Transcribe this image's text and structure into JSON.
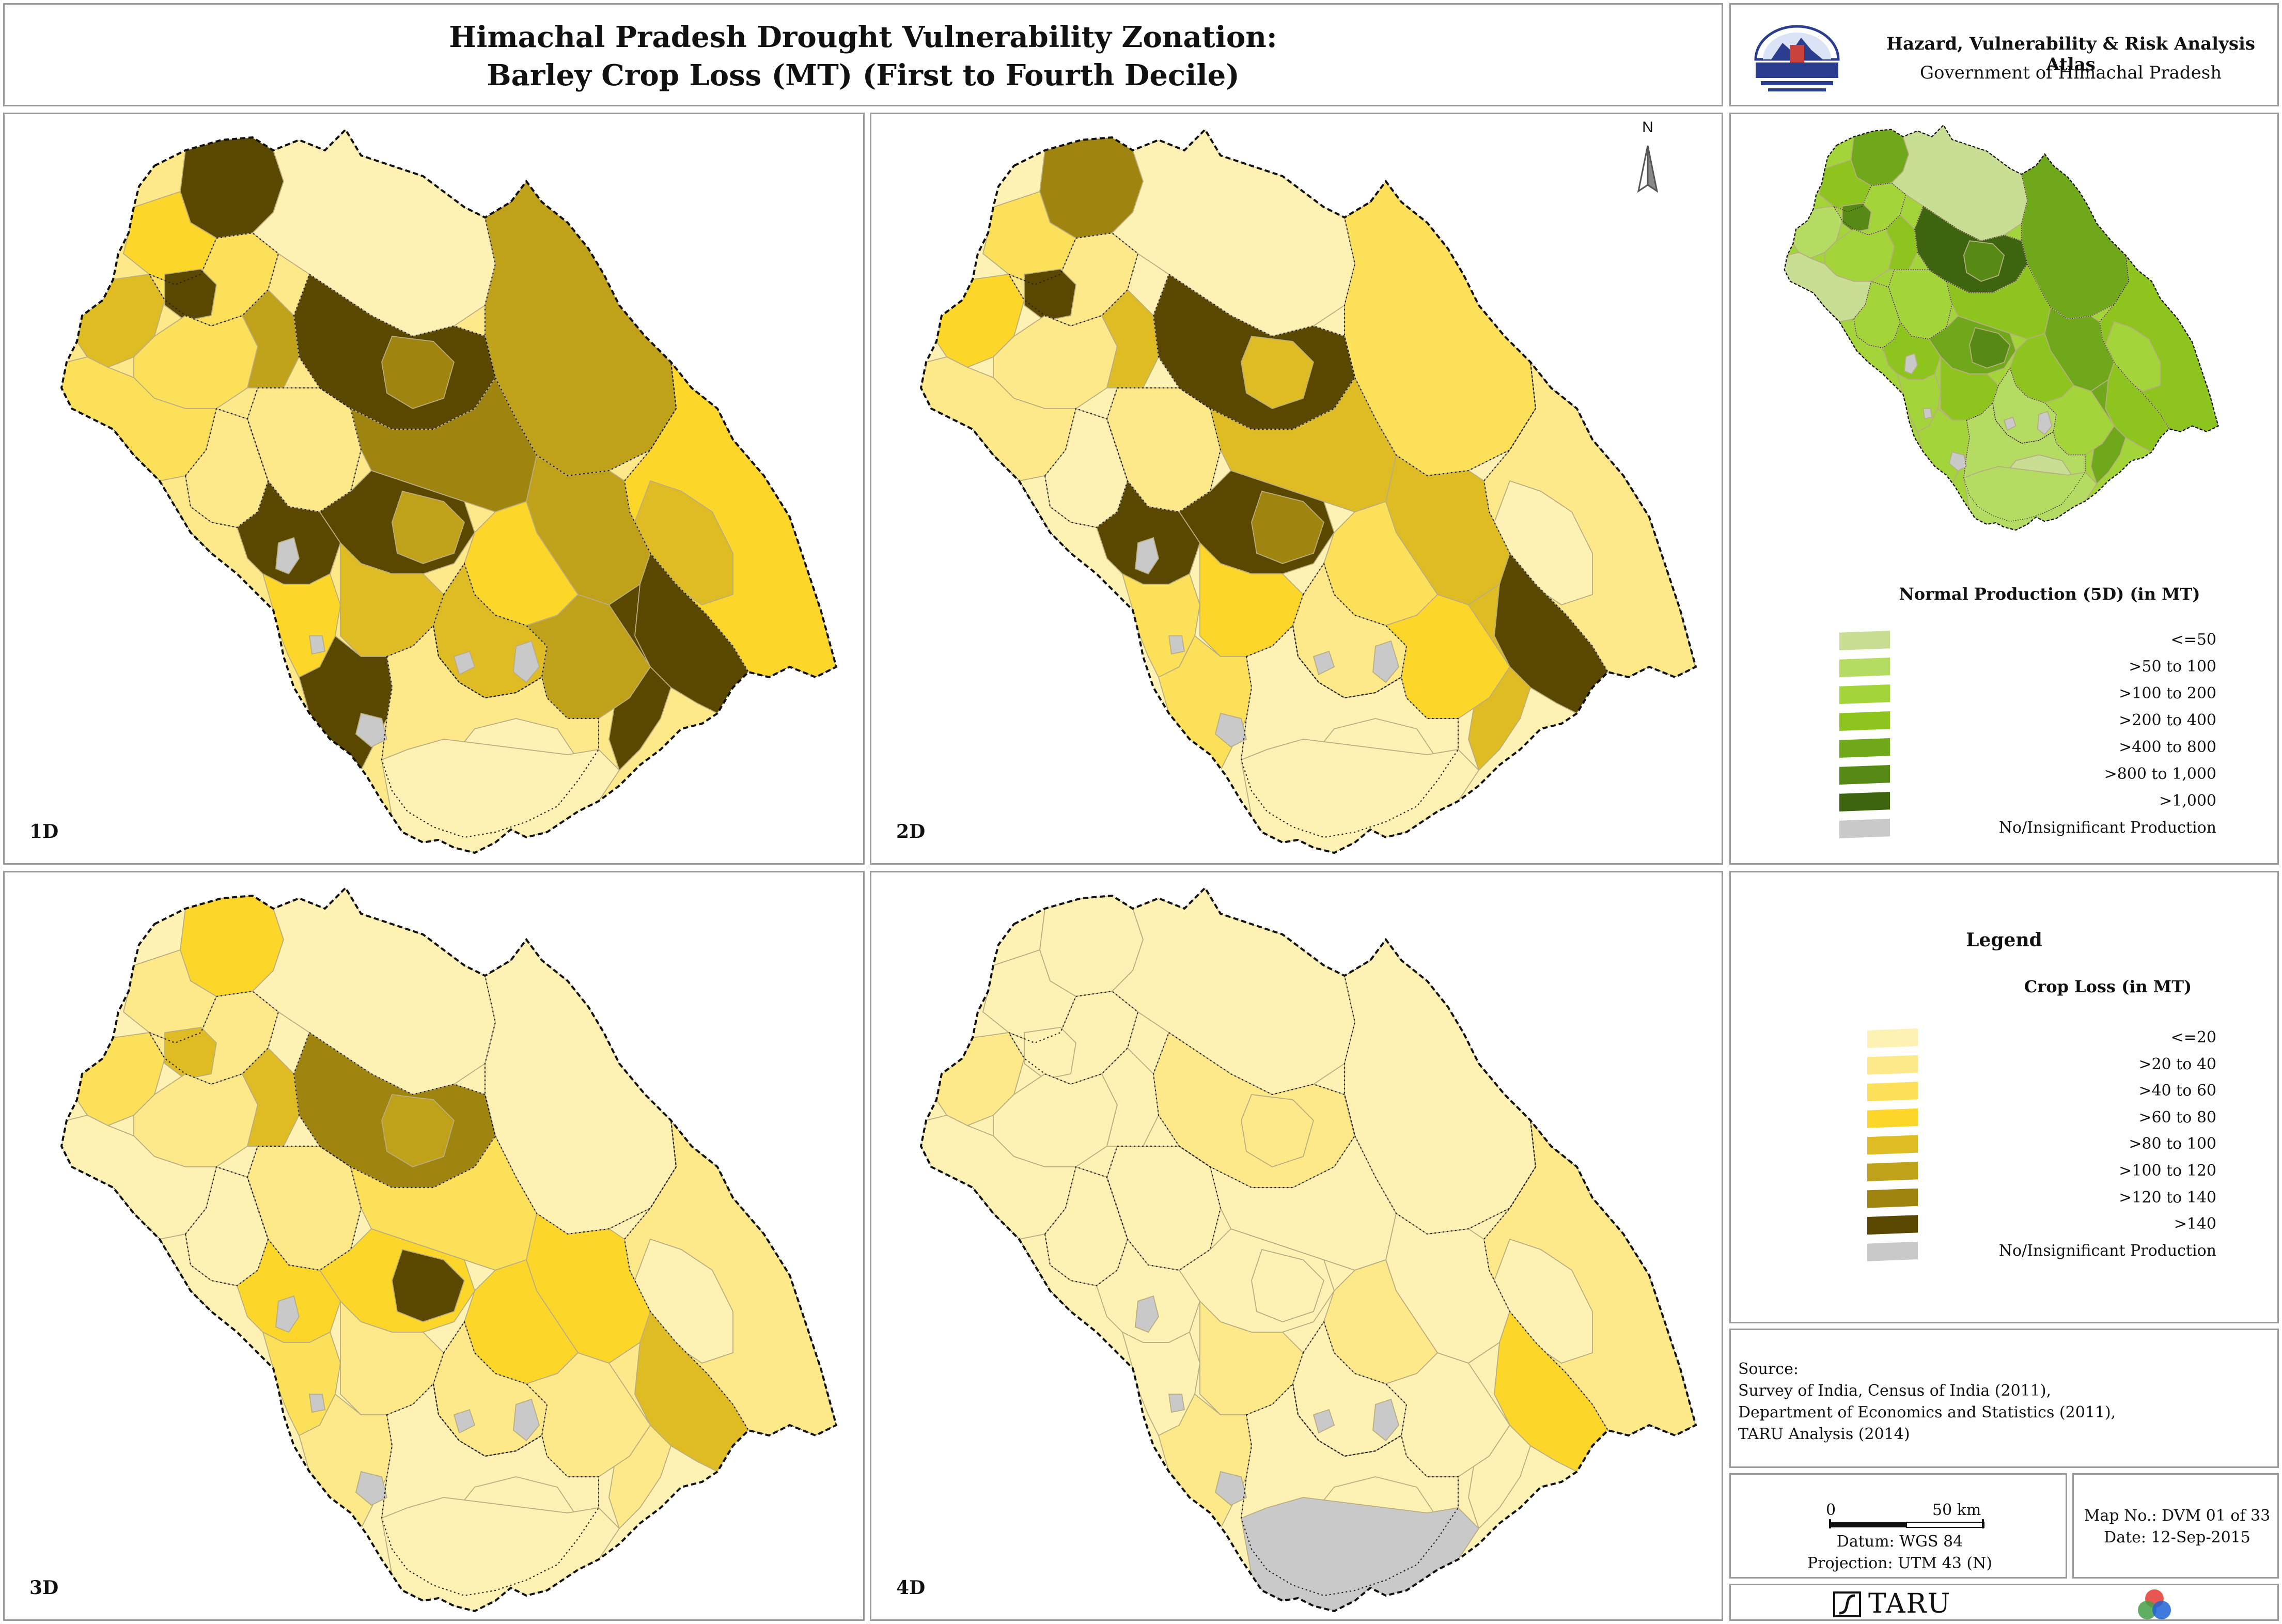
{
  "title": {
    "line1": "Himachal Pradesh Drought Vulnerability Zonation:",
    "line2": "Barley Crop Loss (MT) (First to Fourth Decile)"
  },
  "atlas": {
    "title": "Hazard, Vulnerability & Risk Analysis Atlas",
    "subtitle": "Government of Himachal Pradesh",
    "emblem_icon": "himachal-emblem-icon"
  },
  "maps": [
    {
      "label": "1D"
    },
    {
      "label": "2D"
    },
    {
      "label": "3D"
    },
    {
      "label": "4D"
    }
  ],
  "north_arrow": {
    "label": "N"
  },
  "production_legend": {
    "title": "Normal Production (5D) (in MT)",
    "items": [
      {
        "label": "<=50",
        "color": "#c8df93"
      },
      {
        "label": ">50 to 100",
        "color": "#b4dc62"
      },
      {
        "label": ">100 to 200",
        "color": "#a3d53a"
      },
      {
        "label": ">200 to 400",
        "color": "#8dc51e"
      },
      {
        "label": ">400 to 800",
        "color": "#6fa81a"
      },
      {
        "label": ">800 to 1,000",
        "color": "#578a14"
      },
      {
        "label": ">1,000",
        "color": "#3d6510"
      },
      {
        "label": "No/Insignificant Production",
        "color": "#c9c9c9"
      }
    ]
  },
  "legend": {
    "heading": "Legend",
    "crop_title": "Crop Loss (in MT)",
    "items": [
      {
        "label": "<=20",
        "color": "#fdf2b3"
      },
      {
        "label": ">20 to 40",
        "color": "#fde98a"
      },
      {
        "label": ">40 to 60",
        "color": "#fde05a"
      },
      {
        "label": ">60 to 80",
        "color": "#fdd62a"
      },
      {
        "label": ">80 to 100",
        "color": "#dfbc24"
      },
      {
        "label": ">100 to 120",
        "color": "#c0a11a"
      },
      {
        "label": ">120 to 140",
        "color": "#9f8410"
      },
      {
        "label": ">140",
        "color": "#5a4800"
      },
      {
        "label": "No/Insignificant Production",
        "color": "#c9c9c9"
      }
    ]
  },
  "source": {
    "heading": "Source:",
    "lines": [
      "Survey of India, Census of India (2011),",
      "Department of Economics and Statistics (2011),",
      "TARU Analysis (2014)"
    ]
  },
  "scale": {
    "zero": "0",
    "distance": "50 km",
    "datum": "Datum: WGS 84",
    "projection": "Projection: UTM 43 (N)"
  },
  "map_info": {
    "map_no": "Map No.: DVM 01 of 33",
    "date": "Date: 12-Sep-2015"
  },
  "footer": {
    "org": "TARU"
  }
}
